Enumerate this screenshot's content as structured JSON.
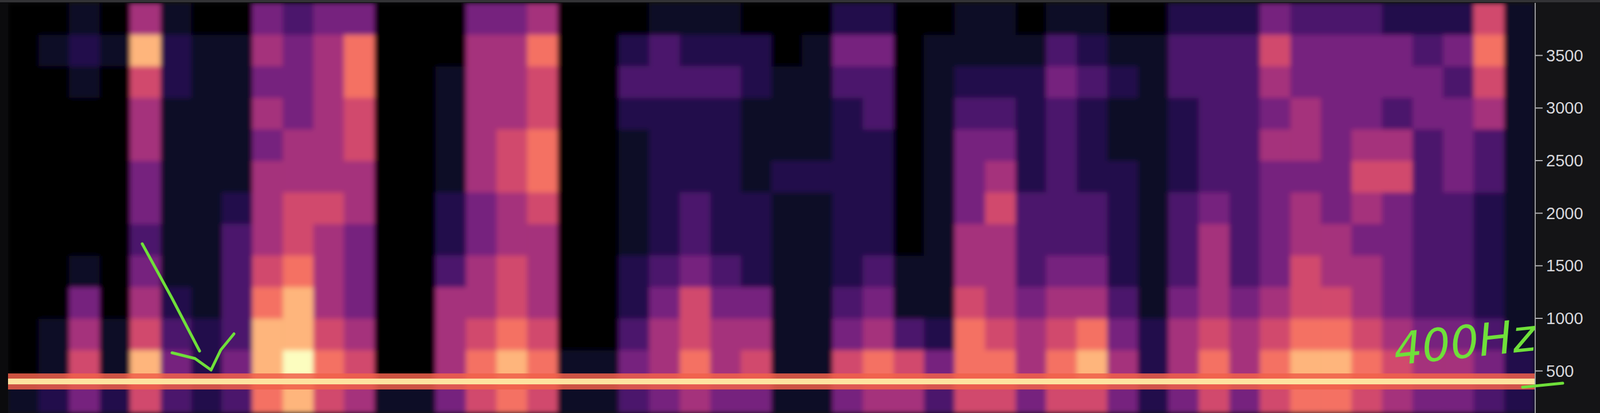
{
  "chart_data": {
    "type": "heatmap",
    "ylim": [
      100,
      4000
    ],
    "yticks": [
      500,
      1000,
      1500,
      2000,
      2500,
      3000,
      3500
    ],
    "tick_labels": "y",
    "y_bins": [
      100,
      400,
      700,
      1000,
      1300,
      1600,
      1900,
      2200,
      2500,
      2800,
      3100,
      3400,
      3700,
      4000
    ],
    "zlim": [
      0,
      9
    ],
    "annotations": [
      {
        "text": "400Hz",
        "y": 400
      }
    ],
    "cells": [
      [
        1,
        0,
        0,
        0,
        0,
        0,
        0,
        0,
        0,
        0,
        0,
        0,
        0
      ],
      [
        2,
        1,
        1,
        0,
        0,
        0,
        0,
        0,
        0,
        0,
        0,
        1,
        0
      ],
      [
        4,
        6,
        5,
        4,
        1,
        0,
        0,
        0,
        0,
        0,
        1,
        2,
        1
      ],
      [
        2,
        1,
        1,
        0,
        0,
        0,
        0,
        0,
        0,
        0,
        0,
        1,
        0
      ],
      [
        6,
        8,
        6,
        5,
        4,
        3,
        4,
        4,
        5,
        5,
        6,
        8,
        5
      ],
      [
        3,
        4,
        3,
        2,
        1,
        1,
        1,
        1,
        1,
        1,
        2,
        2,
        1
      ],
      [
        2,
        2,
        2,
        1,
        1,
        1,
        1,
        1,
        1,
        1,
        1,
        1,
        0
      ],
      [
        3,
        4,
        3,
        3,
        3,
        3,
        2,
        1,
        1,
        1,
        1,
        1,
        0
      ],
      [
        7,
        8,
        8,
        7,
        6,
        5,
        5,
        5,
        4,
        5,
        4,
        5,
        4
      ],
      [
        8,
        9,
        8,
        8,
        7,
        6,
        6,
        5,
        5,
        4,
        4,
        4,
        3
      ],
      [
        6,
        7,
        6,
        5,
        5,
        5,
        6,
        5,
        5,
        5,
        5,
        5,
        4
      ],
      [
        5,
        6,
        5,
        4,
        4,
        4,
        5,
        5,
        6,
        6,
        7,
        7,
        4
      ],
      [
        1,
        0,
        0,
        0,
        0,
        0,
        0,
        0,
        0,
        0,
        0,
        0,
        0
      ],
      [
        1,
        0,
        0,
        0,
        0,
        0,
        0,
        0,
        0,
        0,
        0,
        0,
        0
      ],
      [
        4,
        5,
        5,
        5,
        3,
        2,
        2,
        1,
        1,
        1,
        1,
        0,
        0
      ],
      [
        6,
        7,
        6,
        5,
        5,
        4,
        4,
        5,
        5,
        5,
        5,
        5,
        4
      ],
      [
        7,
        8,
        7,
        6,
        6,
        5,
        5,
        6,
        6,
        5,
        5,
        5,
        4
      ],
      [
        6,
        7,
        6,
        5,
        5,
        5,
        6,
        7,
        7,
        6,
        6,
        7,
        5
      ],
      [
        1,
        1,
        0,
        0,
        0,
        0,
        0,
        0,
        0,
        0,
        0,
        0,
        0
      ],
      [
        1,
        1,
        0,
        0,
        0,
        0,
        0,
        0,
        0,
        0,
        0,
        0,
        0
      ],
      [
        3,
        4,
        3,
        2,
        2,
        1,
        1,
        1,
        1,
        2,
        3,
        2,
        0
      ],
      [
        4,
        5,
        5,
        4,
        3,
        2,
        2,
        2,
        2,
        2,
        3,
        3,
        1
      ],
      [
        5,
        7,
        6,
        6,
        4,
        3,
        3,
        2,
        2,
        2,
        3,
        2,
        1
      ],
      [
        4,
        5,
        5,
        4,
        3,
        2,
        2,
        2,
        2,
        2,
        3,
        2,
        1
      ],
      [
        4,
        6,
        5,
        4,
        2,
        2,
        2,
        1,
        1,
        1,
        2,
        2,
        0
      ],
      [
        1,
        1,
        1,
        1,
        1,
        1,
        1,
        2,
        1,
        1,
        1,
        0,
        0
      ],
      [
        1,
        1,
        1,
        1,
        1,
        1,
        1,
        2,
        1,
        1,
        1,
        1,
        0
      ],
      [
        4,
        6,
        4,
        3,
        2,
        2,
        2,
        2,
        2,
        2,
        3,
        4,
        2
      ],
      [
        5,
        7,
        5,
        4,
        3,
        2,
        2,
        2,
        2,
        3,
        3,
        4,
        2
      ],
      [
        5,
        6,
        3,
        1,
        1,
        0,
        0,
        0,
        0,
        0,
        0,
        0,
        0
      ],
      [
        3,
        4,
        2,
        1,
        1,
        1,
        1,
        1,
        1,
        1,
        1,
        1,
        0
      ],
      [
        6,
        7,
        7,
        6,
        5,
        5,
        4,
        4,
        4,
        3,
        2,
        1,
        1
      ],
      [
        6,
        7,
        6,
        5,
        5,
        5,
        6,
        5,
        4,
        3,
        2,
        1,
        1
      ],
      [
        4,
        5,
        5,
        4,
        3,
        3,
        3,
        2,
        2,
        2,
        2,
        1,
        0
      ],
      [
        6,
        7,
        6,
        5,
        4,
        3,
        3,
        3,
        3,
        3,
        4,
        3,
        1
      ],
      [
        6,
        8,
        7,
        5,
        4,
        3,
        3,
        2,
        2,
        2,
        3,
        2,
        1
      ],
      [
        4,
        5,
        4,
        3,
        2,
        2,
        2,
        2,
        1,
        1,
        2,
        1,
        0
      ],
      [
        2,
        2,
        2,
        1,
        1,
        1,
        1,
        1,
        1,
        1,
        1,
        1,
        0
      ],
      [
        4,
        5,
        5,
        4,
        3,
        3,
        3,
        2,
        2,
        2,
        3,
        3,
        2
      ],
      [
        6,
        7,
        6,
        5,
        5,
        5,
        4,
        3,
        3,
        3,
        3,
        3,
        2
      ],
      [
        4,
        5,
        5,
        4,
        3,
        3,
        3,
        3,
        3,
        3,
        3,
        3,
        2
      ],
      [
        6,
        7,
        6,
        5,
        4,
        4,
        4,
        4,
        5,
        4,
        5,
        6,
        4
      ],
      [
        7,
        8,
        7,
        6,
        6,
        5,
        5,
        4,
        5,
        5,
        4,
        4,
        3
      ],
      [
        7,
        8,
        7,
        6,
        5,
        5,
        4,
        4,
        4,
        4,
        4,
        4,
        3
      ],
      [
        6,
        7,
        6,
        5,
        5,
        4,
        5,
        6,
        5,
        4,
        4,
        4,
        3
      ],
      [
        5,
        6,
        5,
        4,
        4,
        4,
        4,
        6,
        5,
        3,
        4,
        4,
        2
      ],
      [
        4,
        5,
        4,
        3,
        3,
        3,
        3,
        3,
        3,
        4,
        4,
        3,
        2
      ],
      [
        4,
        5,
        4,
        3,
        3,
        3,
        3,
        4,
        4,
        4,
        3,
        4,
        2
      ],
      [
        3,
        4,
        3,
        2,
        2,
        2,
        2,
        3,
        3,
        5,
        6,
        7,
        6
      ],
      [
        2,
        2,
        1,
        1,
        1,
        1,
        1,
        1,
        1,
        1,
        1,
        1,
        1
      ]
    ]
  }
}
